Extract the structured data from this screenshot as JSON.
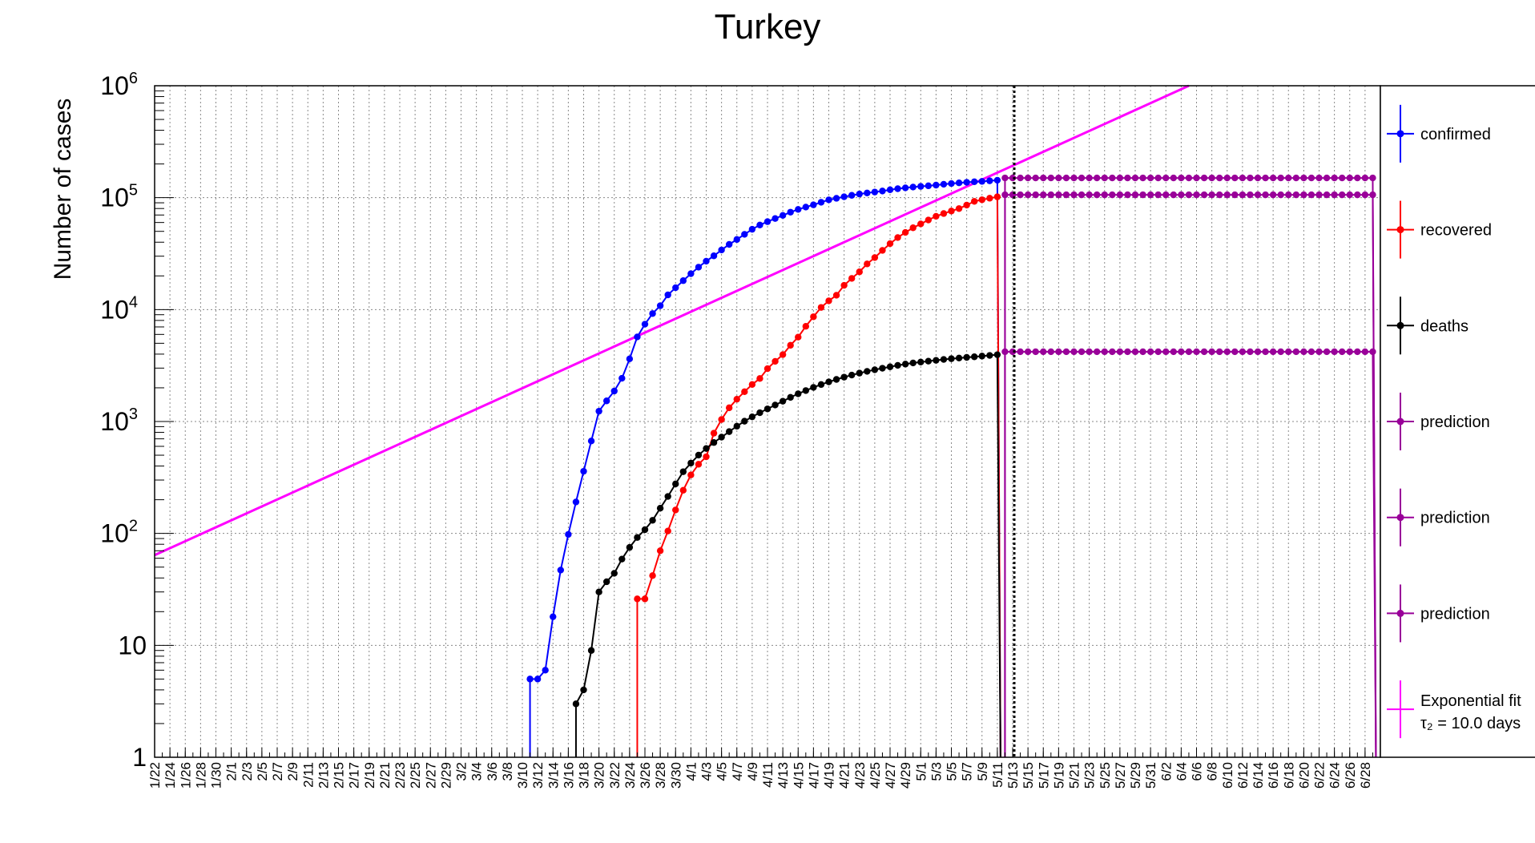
{
  "chart_data": {
    "type": "line",
    "title": "Turkey",
    "ylabel": "Number of cases",
    "xlabel": "",
    "y_scale": "log",
    "ylim": [
      1,
      1000000
    ],
    "grid": true,
    "legend_placement": "right",
    "x_dates": {
      "start": "1/22",
      "end": "6/30",
      "tick_labels": [
        "1/22",
        "1/24",
        "1/26",
        "1/28",
        "1/30",
        "2/1",
        "2/3",
        "2/5",
        "2/7",
        "2/9",
        "2/11",
        "2/13",
        "2/15",
        "2/17",
        "2/19",
        "2/21",
        "2/23",
        "2/25",
        "2/27",
        "2/29",
        "3/2",
        "3/4",
        "3/6",
        "3/8",
        "3/10",
        "3/12",
        "3/14",
        "3/16",
        "3/18",
        "3/20",
        "3/22",
        "3/24",
        "3/26",
        "3/28",
        "3/30",
        "4/1",
        "4/3",
        "4/5",
        "4/7",
        "4/9",
        "4/11",
        "4/13",
        "4/15",
        "4/17",
        "4/19",
        "4/21",
        "4/23",
        "4/25",
        "4/27",
        "4/29",
        "5/1",
        "5/3",
        "5/5",
        "5/7",
        "5/9",
        "5/11",
        "5/13",
        "5/15",
        "5/17",
        "5/19",
        "5/21",
        "5/23",
        "5/25",
        "5/27",
        "5/29",
        "5/31",
        "6/2",
        "6/4",
        "6/6",
        "6/8",
        "6/10",
        "6/12",
        "6/14",
        "6/16",
        "6/18",
        "6/20",
        "6/22",
        "6/24",
        "6/26",
        "6/28"
      ]
    },
    "y_tick_labels": [
      {
        "value": 1,
        "base": "1",
        "exp": ""
      },
      {
        "value": 10,
        "base": "10",
        "exp": ""
      },
      {
        "value": 100,
        "base": "10",
        "exp": "2"
      },
      {
        "value": 1000,
        "base": "10",
        "exp": "3"
      },
      {
        "value": 10000,
        "base": "10",
        "exp": "4"
      },
      {
        "value": 100000,
        "base": "10",
        "exp": "5"
      },
      {
        "value": 1000000,
        "base": "10",
        "exp": "6"
      }
    ],
    "vertical_marker": {
      "date": "5/13",
      "style": "dotted"
    },
    "series": [
      {
        "name": "confirmed",
        "color": "#0000ff",
        "marker": "circle",
        "points": [
          [
            "3/11",
            5
          ],
          [
            "3/12",
            5
          ],
          [
            "3/13",
            6
          ],
          [
            "3/14",
            18
          ],
          [
            "3/15",
            47
          ],
          [
            "3/16",
            98
          ],
          [
            "3/17",
            191
          ],
          [
            "3/18",
            359
          ],
          [
            "3/19",
            670
          ],
          [
            "3/20",
            1236
          ],
          [
            "3/21",
            1529
          ],
          [
            "3/22",
            1872
          ],
          [
            "3/23",
            2433
          ],
          [
            "3/24",
            3629
          ],
          [
            "3/25",
            5698
          ],
          [
            "3/26",
            7402
          ],
          [
            "3/27",
            9217
          ],
          [
            "3/28",
            10827
          ],
          [
            "3/29",
            13531
          ],
          [
            "3/30",
            15679
          ],
          [
            "3/31",
            18135
          ],
          [
            "4/1",
            20921
          ],
          [
            "4/2",
            23934
          ],
          [
            "4/3",
            27069
          ],
          [
            "4/4",
            30217
          ],
          [
            "4/5",
            34109
          ],
          [
            "4/6",
            38226
          ],
          [
            "4/7",
            42282
          ],
          [
            "4/8",
            47029
          ],
          [
            "4/9",
            52167
          ],
          [
            "4/10",
            56956
          ],
          [
            "4/11",
            61049
          ],
          [
            "4/12",
            65111
          ],
          [
            "4/13",
            69392
          ],
          [
            "4/14",
            74193
          ],
          [
            "4/15",
            78546
          ],
          [
            "4/16",
            82329
          ],
          [
            "4/17",
            86306
          ],
          [
            "4/18",
            90980
          ],
          [
            "4/19",
            95591
          ],
          [
            "4/20",
            98674
          ],
          [
            "4/21",
            101790
          ],
          [
            "4/22",
            104912
          ],
          [
            "4/23",
            107773
          ],
          [
            "4/24",
            110130
          ],
          [
            "4/25",
            112261
          ],
          [
            "4/26",
            114653
          ],
          [
            "4/27",
            117589
          ],
          [
            "4/28",
            120204
          ],
          [
            "4/29",
            122392
          ],
          [
            "4/30",
            124375
          ],
          [
            "5/1",
            126045
          ],
          [
            "5/2",
            127659
          ],
          [
            "5/3",
            129491
          ],
          [
            "5/4",
            131744
          ],
          [
            "5/5",
            133721
          ],
          [
            "5/6",
            135569
          ],
          [
            "5/7",
            137115
          ],
          [
            "5/8",
            138657
          ],
          [
            "5/9",
            139771
          ],
          [
            "5/10",
            141475
          ],
          [
            "5/11",
            143114
          ]
        ]
      },
      {
        "name": "recovered",
        "color": "#ff0000",
        "marker": "circle",
        "points": [
          [
            "3/25",
            26
          ],
          [
            "3/26",
            26
          ],
          [
            "3/27",
            42
          ],
          [
            "3/28",
            70
          ],
          [
            "3/29",
            105
          ],
          [
            "3/30",
            162
          ],
          [
            "3/31",
            243
          ],
          [
            "4/1",
            333
          ],
          [
            "4/2",
            415
          ],
          [
            "4/3",
            484
          ],
          [
            "4/4",
            786
          ],
          [
            "4/5",
            1042
          ],
          [
            "4/6",
            1326
          ],
          [
            "4/7",
            1582
          ],
          [
            "4/8",
            1846
          ],
          [
            "4/9",
            2142
          ],
          [
            "4/10",
            2423
          ],
          [
            "4/11",
            2965
          ],
          [
            "4/12",
            3446
          ],
          [
            "4/13",
            3957
          ],
          [
            "4/14",
            4799
          ],
          [
            "4/15",
            5674
          ],
          [
            "4/16",
            7089
          ],
          [
            "4/17",
            8631
          ],
          [
            "4/18",
            10453
          ],
          [
            "4/19",
            11976
          ],
          [
            "4/20",
            13430
          ],
          [
            "4/21",
            16477
          ],
          [
            "4/22",
            19000
          ],
          [
            "4/23",
            21737
          ],
          [
            "4/24",
            25582
          ],
          [
            "4/25",
            29140
          ],
          [
            "4/26",
            33791
          ],
          [
            "4/27",
            38809
          ],
          [
            "4/28",
            44040
          ],
          [
            "4/29",
            48886
          ],
          [
            "4/30",
            53808
          ],
          [
            "5/1",
            58259
          ],
          [
            "5/2",
            63151
          ],
          [
            "5/3",
            68166
          ],
          [
            "5/4",
            72137
          ],
          [
            "5/5",
            75947
          ],
          [
            "5/6",
            79918
          ],
          [
            "5/7",
            85802
          ],
          [
            "5/8",
            92691
          ],
          [
            "5/9",
            95780
          ],
          [
            "5/10",
            98889
          ],
          [
            "5/11",
            101715
          ]
        ]
      },
      {
        "name": "deaths",
        "color": "#000000",
        "marker": "circle",
        "points": [
          [
            "3/17",
            3
          ],
          [
            "3/18",
            4
          ],
          [
            "3/19",
            9
          ],
          [
            "3/20",
            30
          ],
          [
            "3/21",
            37
          ],
          [
            "3/22",
            44
          ],
          [
            "3/23",
            59
          ],
          [
            "3/24",
            75
          ],
          [
            "3/25",
            92
          ],
          [
            "3/26",
            108
          ],
          [
            "3/27",
            131
          ],
          [
            "3/28",
            168
          ],
          [
            "3/29",
            214
          ],
          [
            "3/30",
            277
          ],
          [
            "3/31",
            356
          ],
          [
            "4/1",
            425
          ],
          [
            "4/2",
            501
          ],
          [
            "4/3",
            574
          ],
          [
            "4/4",
            649
          ],
          [
            "4/5",
            725
          ],
          [
            "4/6",
            812
          ],
          [
            "4/7",
            908
          ],
          [
            "4/8",
            1006
          ],
          [
            "4/9",
            1101
          ],
          [
            "4/10",
            1198
          ],
          [
            "4/11",
            1296
          ],
          [
            "4/12",
            1403
          ],
          [
            "4/13",
            1518
          ],
          [
            "4/14",
            1643
          ],
          [
            "4/15",
            1769
          ],
          [
            "4/16",
            1890
          ],
          [
            "4/17",
            2017
          ],
          [
            "4/18",
            2140
          ],
          [
            "4/19",
            2259
          ],
          [
            "4/20",
            2376
          ],
          [
            "4/21",
            2491
          ],
          [
            "4/22",
            2600
          ],
          [
            "4/23",
            2706
          ],
          [
            "4/24",
            2805
          ],
          [
            "4/25",
            2900
          ],
          [
            "4/26",
            2992
          ],
          [
            "4/27",
            3081
          ],
          [
            "4/28",
            3174
          ],
          [
            "4/29",
            3258
          ],
          [
            "4/30",
            3336
          ],
          [
            "5/1",
            3397
          ],
          [
            "5/2",
            3461
          ],
          [
            "5/3",
            3520
          ],
          [
            "5/4",
            3584
          ],
          [
            "5/5",
            3641
          ],
          [
            "5/6",
            3689
          ],
          [
            "5/7",
            3739
          ],
          [
            "5/8",
            3786
          ],
          [
            "5/9",
            3841
          ],
          [
            "5/10",
            3894
          ],
          [
            "5/11",
            3952
          ]
        ]
      },
      {
        "name": "prediction",
        "color": "#990099",
        "marker": "circle",
        "flat_value": 150000,
        "range": [
          "5/12",
          "6/29"
        ]
      },
      {
        "name": "prediction",
        "color": "#990099",
        "marker": "circle",
        "flat_value": 106000,
        "range": [
          "5/12",
          "6/29"
        ]
      },
      {
        "name": "prediction",
        "color": "#990099",
        "marker": "circle",
        "flat_value": 4200,
        "range": [
          "5/12",
          "6/29"
        ]
      },
      {
        "name": "Exponential fit",
        "label_line2": "τ₂ = 10.0 days",
        "color": "#ff00ff",
        "marker": "none",
        "line": [
          [
            "1/22",
            64
          ],
          [
            "6/5",
            1000000
          ]
        ]
      }
    ]
  }
}
